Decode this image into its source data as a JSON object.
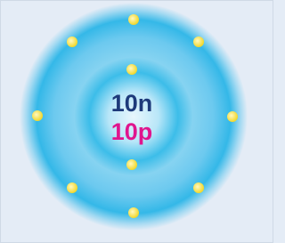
{
  "nucleus": {
    "neutrons": "10n",
    "protons": "10p"
  }
}
